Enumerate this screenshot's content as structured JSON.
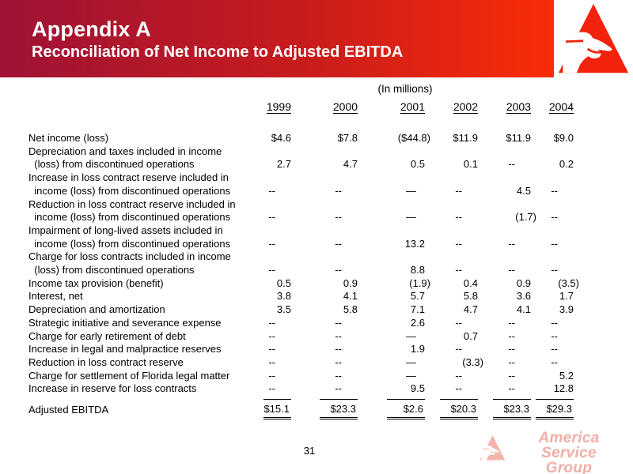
{
  "slide": {
    "title": "Appendix A",
    "subtitle": "Reconciliation of Net Income to Adjusted EBITDA",
    "units_note": "(In millions)",
    "page_number": "31",
    "watermark": {
      "line1": "America Service",
      "line2": "Group"
    },
    "colors": {
      "banner_left": "#9e1236",
      "banner_right": "#fa2d08",
      "logo_red": "#f2220d",
      "watermark_pink": "#f2aea6",
      "header_text": "#ffffff",
      "body_text": "#000000"
    }
  },
  "table": {
    "years": [
      "1999",
      "2000",
      "2001",
      "2002",
      "2003",
      "2004"
    ],
    "rows": [
      {
        "label": "Net income (loss)",
        "values": [
          "$4.6",
          "$7.8",
          "($44.8)",
          "$11.9",
          "$11.9",
          "$9.0"
        ]
      },
      {
        "label": "Depreciation and taxes included in income\n  (loss) from discontinued operations",
        "values": [
          "2.7",
          "4.7",
          "0.5",
          "0.1",
          "--",
          "0.2"
        ]
      },
      {
        "label": "Increase in loss contract reserve included in\n  income (loss) from discontinued operations",
        "values": [
          "--",
          "--",
          "—",
          "--",
          "4.5",
          "--"
        ]
      },
      {
        "label": "Reduction in loss contract reserve included in\n  income (loss) from discontinued operations",
        "values": [
          "--",
          "--",
          "—",
          "--",
          "(1.7)",
          "--"
        ]
      },
      {
        "label": "Impairment of long-lived assets included in\n  income (loss) from discontinued operations",
        "values": [
          "--",
          "--",
          "13.2",
          "--",
          "--",
          "--"
        ]
      },
      {
        "label": "Charge for loss contracts included in income\n  (loss) from discontinued operations",
        "values": [
          "--",
          "--",
          "8.8",
          "--",
          "--",
          "--"
        ]
      },
      {
        "label": "Income tax provision (benefit)",
        "values": [
          "0.5",
          "0.9",
          "(1.9)",
          "0.4",
          "0.9",
          "(3.5)"
        ]
      },
      {
        "label": "Interest, net",
        "values": [
          "3.8",
          "4.1",
          "5.7",
          "5.8",
          "3.6",
          "1.7"
        ]
      },
      {
        "label": "Depreciation and amortization",
        "values": [
          "3.5",
          "5.8",
          "7.1",
          "4.7",
          "4.1",
          "3.9"
        ]
      },
      {
        "label": "Strategic initiative and severance expense",
        "values": [
          "--",
          "--",
          "2.6",
          "--",
          "--",
          "--"
        ]
      },
      {
        "label": "Charge for early retirement of debt",
        "values": [
          "--",
          "--",
          "—",
          "0.7",
          "--",
          "--"
        ]
      },
      {
        "label": "Increase in legal and malpractice reserves",
        "values": [
          "--",
          "--",
          "1.9",
          "--",
          "--",
          "--"
        ]
      },
      {
        "label": "Reduction in loss contract reserve",
        "values": [
          "--",
          "--",
          "—",
          "(3.3)",
          "--",
          "--"
        ]
      },
      {
        "label": "Charge for settlement of Florida legal matter",
        "values": [
          "--",
          "--",
          "—",
          "--",
          "--",
          "5.2"
        ]
      },
      {
        "label": "Increase in reserve for loss contracts",
        "values": [
          "--",
          "--",
          "9.5",
          "--",
          "--",
          "12.8"
        ]
      }
    ],
    "total_row": {
      "label": "Adjusted EBITDA",
      "values": [
        "$15.1",
        "$23.3",
        "$2.6",
        "$20.3",
        "$23.3",
        "$29.3"
      ]
    }
  }
}
